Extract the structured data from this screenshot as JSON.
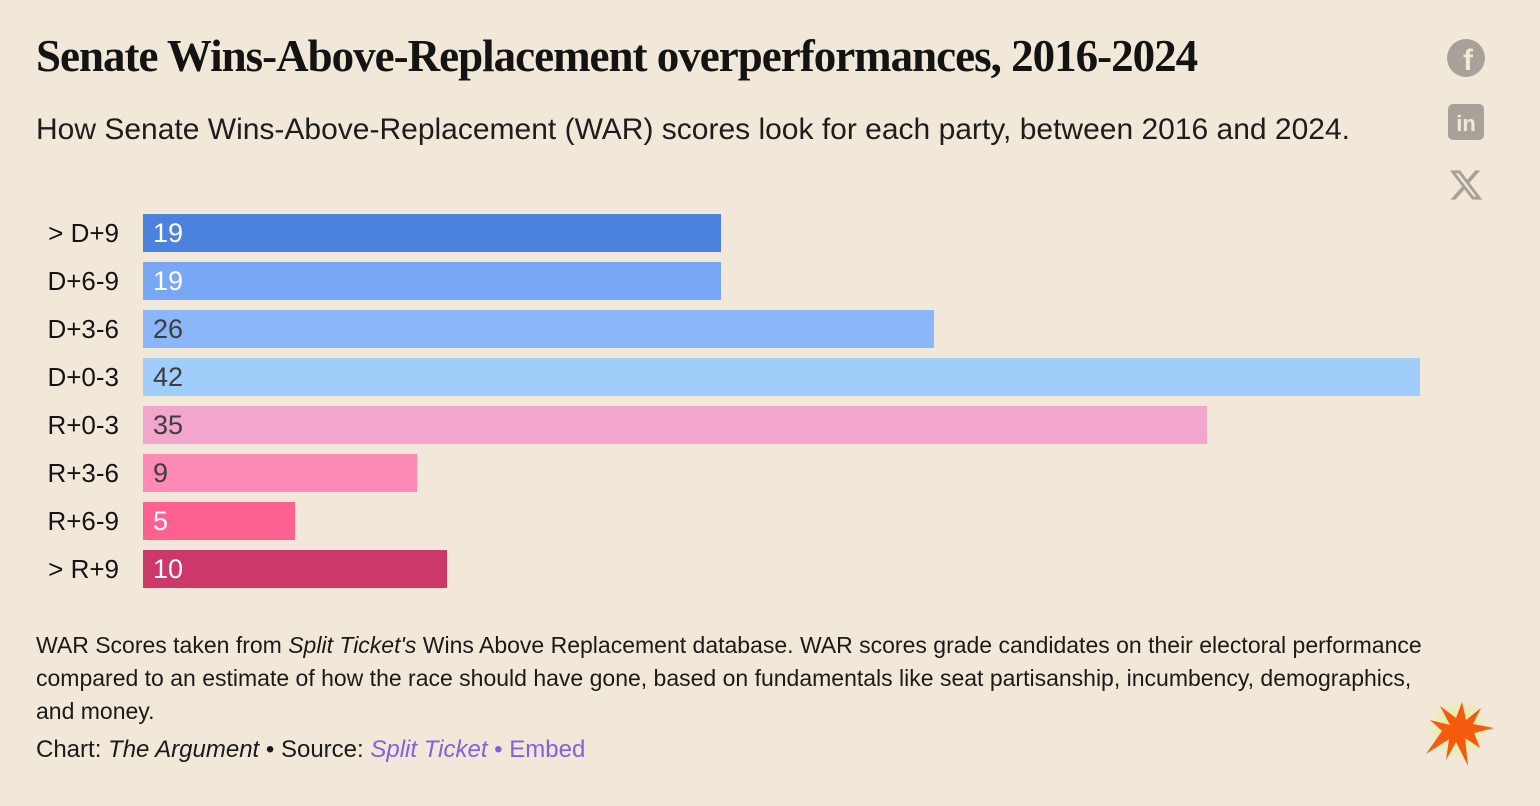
{
  "page": {
    "background": "#f2e8d9",
    "text_color": "#1a1a1a"
  },
  "header": {
    "title": "Senate Wins-Above-Replacement overperformances, 2016-2024",
    "subtitle": "How Senate Wins-Above-Replacement (WAR) scores look for each party, between 2016 and 2024."
  },
  "social": {
    "icon_color": "#a8a19a",
    "icons": [
      "facebook-icon",
      "linkedin-icon",
      "x-twitter-icon"
    ]
  },
  "chart_data": {
    "type": "bar",
    "orientation": "horizontal",
    "title": "Senate Wins-Above-Replacement overperformances, 2016-2024",
    "xlabel": "",
    "ylabel": "",
    "grid": false,
    "legend": false,
    "value_labels": "inside-left",
    "xmax": 42,
    "categories": [
      "> D+9",
      "D+6-9",
      "D+3-6",
      "D+0-3",
      "R+0-3",
      "R+3-6",
      "R+6-9",
      "> R+9"
    ],
    "values": [
      19,
      19,
      26,
      42,
      35,
      9,
      5,
      10
    ],
    "bar_colors": [
      "#4a82de",
      "#78a8f5",
      "#8bb7fa",
      "#a0cdfa",
      "#f2a6ce",
      "#fd8ab4",
      "#fd6190",
      "#cb3869"
    ],
    "value_label_colors": [
      "#ffffff",
      "#ffffff",
      "#3d3d3d",
      "#3d3d3d",
      "#3d3d3d",
      "#3d3d3d",
      "#ffffff",
      "#ffffff"
    ]
  },
  "footer": {
    "note_part1": "WAR Scores taken from ",
    "note_italic": "Split Ticket's",
    "note_part2": " Wins Above Replacement database. WAR scores grade candidates on their electoral performance compared to an estimate of how the race should have gone, based on fundamentals like seat partisanship, incumbency, demographics, and money.",
    "credit_label": "Chart: ",
    "credit_name": "The Argument",
    "sep1": " • ",
    "source_label": "Source: ",
    "source_link": "Split Ticket",
    "sep2": " • ",
    "embed_link": "Embed",
    "link_color": "#8161dd"
  },
  "logo": {
    "name": "argument-starburst-logo",
    "star_color": "#f65b0d",
    "glow_color": "#d4ee66"
  }
}
